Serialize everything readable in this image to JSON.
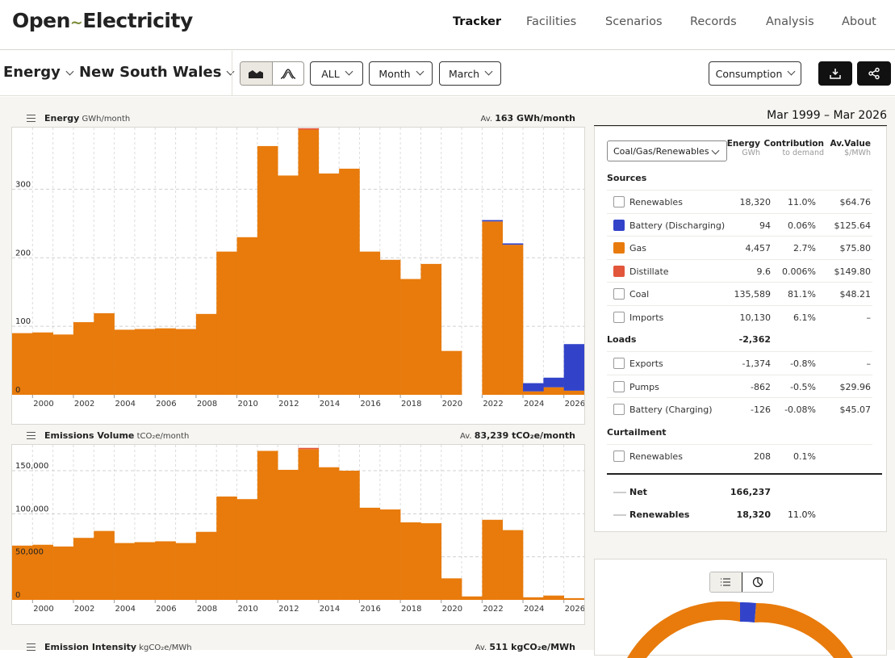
{
  "header": {
    "logo_left": "Open",
    "logo_mark": "~",
    "logo_right": "Electricity",
    "nav": [
      "Tracker",
      "Facilities",
      "Scenarios",
      "Records",
      "Analysis",
      "About"
    ],
    "active_nav": "Tracker"
  },
  "toolbar": {
    "metric": "Energy",
    "region": "New South Wales",
    "range_filter": "ALL",
    "interval": "Month",
    "month": "March",
    "view": "Consumption"
  },
  "charts": {
    "energy": {
      "title": "Energy",
      "unit": "GWh/month",
      "avg_prefix": "Av.",
      "avg": "163 GWh/month"
    },
    "emissions": {
      "title": "Emissions Volume",
      "unit": "tCO₂e/month",
      "avg_prefix": "Av.",
      "avg": "83,239 tCO₂e/month"
    },
    "intensity": {
      "title": "Emission Intensity",
      "unit": "kgCO₂e/MWh",
      "avg_prefix": "Av.",
      "avg": "511 kgCO₂e/MWh"
    }
  },
  "chart_data": [
    {
      "type": "bar",
      "title": "Energy",
      "ylabel": "GWh/month",
      "ylim": [
        0,
        390
      ],
      "yticks": [
        "0",
        "100",
        "200",
        "300"
      ],
      "xticks": [
        "2000",
        "2002",
        "2004",
        "2006",
        "2008",
        "2010",
        "2012",
        "2014",
        "2016",
        "2018",
        "2020",
        "2022",
        "2024",
        "2026"
      ],
      "categories": [
        "1999",
        "2000",
        "2001",
        "2002",
        "2003",
        "2004",
        "2005",
        "2006",
        "2007",
        "2008",
        "2009",
        "2010",
        "2011",
        "2012",
        "2013",
        "2014",
        "2015",
        "2016",
        "2017",
        "2018",
        "2019",
        "2020",
        "2021",
        "2022",
        "2023",
        "2024",
        "2025",
        "2026"
      ],
      "series": [
        {
          "name": "Gas",
          "color": "#e87b0c",
          "values": [
            90,
            91,
            88,
            106,
            119,
            95,
            96,
            97,
            96,
            118,
            209,
            230,
            363,
            320,
            387,
            323,
            330,
            209,
            197,
            169,
            191,
            64,
            0,
            253,
            219,
            5,
            11,
            6
          ]
        },
        {
          "name": "Battery (Discharging)",
          "color": "#3243c9",
          "values": [
            0,
            0,
            0,
            0,
            0,
            0,
            0,
            0,
            0,
            0,
            0,
            0,
            0,
            0,
            0,
            0,
            0,
            0,
            0,
            0,
            0,
            0,
            0,
            2,
            2,
            12,
            14,
            68
          ]
        },
        {
          "name": "Distillate",
          "color": "#e2563b",
          "values": [
            0,
            0,
            0,
            0,
            0,
            0,
            0,
            0,
            0,
            0,
            0,
            0,
            0,
            0,
            2,
            0,
            0,
            0,
            0,
            0,
            0,
            0,
            0,
            0,
            0,
            0,
            0,
            0
          ]
        }
      ]
    },
    {
      "type": "bar",
      "title": "Emissions Volume",
      "ylabel": "tCO₂e/month",
      "ylim": [
        0,
        180000
      ],
      "yticks": [
        "0",
        "50,000",
        "100,000",
        "150,000"
      ],
      "xticks": [
        "2000",
        "2002",
        "2004",
        "2006",
        "2008",
        "2010",
        "2012",
        "2014",
        "2016",
        "2018",
        "2020",
        "2022",
        "2024",
        "2026"
      ],
      "categories": [
        "1999",
        "2000",
        "2001",
        "2002",
        "2003",
        "2004",
        "2005",
        "2006",
        "2007",
        "2008",
        "2009",
        "2010",
        "2011",
        "2012",
        "2013",
        "2014",
        "2015",
        "2016",
        "2017",
        "2018",
        "2019",
        "2020",
        "2021",
        "2022",
        "2023",
        "2024",
        "2025",
        "2026"
      ],
      "series": [
        {
          "name": "Gas",
          "color": "#e87b0c",
          "values": [
            63000,
            64000,
            62000,
            72000,
            80000,
            66000,
            67000,
            68000,
            66000,
            79000,
            120000,
            117000,
            173000,
            151000,
            175000,
            154000,
            150000,
            107000,
            105000,
            90000,
            89000,
            25000,
            4000,
            93000,
            81000,
            3000,
            5000,
            2000
          ]
        },
        {
          "name": "Distillate",
          "color": "#e2563b",
          "values": [
            0,
            0,
            0,
            0,
            0,
            0,
            0,
            0,
            0,
            0,
            0,
            0,
            0,
            0,
            1500,
            0,
            0,
            0,
            0,
            0,
            0,
            0,
            0,
            0,
            0,
            0,
            0,
            0
          ]
        }
      ]
    }
  ],
  "summary": {
    "date_range": "Mar 1999 – Mar 2026",
    "grouping": "Coal/Gas/Renewables",
    "col_energy": "Energy",
    "col_energy_unit": "GWh",
    "col_contrib": "Contribution",
    "col_contrib_sub": "to demand",
    "col_value": "Av.Value",
    "col_value_unit": "$/MWh",
    "sources_label": "Sources",
    "sources": [
      {
        "name": "Renewables",
        "energy": "18,320",
        "contrib": "11.0%",
        "value": "$64.76",
        "color": "#ffffff"
      },
      {
        "name": "Battery (Discharging)",
        "energy": "94",
        "contrib": "0.06%",
        "value": "$125.64",
        "color": "#3243c9"
      },
      {
        "name": "Gas",
        "energy": "4,457",
        "contrib": "2.7%",
        "value": "$75.80",
        "color": "#e87b0c"
      },
      {
        "name": "Distillate",
        "energy": "9.6",
        "contrib": "0.006%",
        "value": "$149.80",
        "color": "#e2563b"
      },
      {
        "name": "Coal",
        "energy": "135,589",
        "contrib": "81.1%",
        "value": "$48.21",
        "color": "#ffffff"
      },
      {
        "name": "Imports",
        "energy": "10,130",
        "contrib": "6.1%",
        "value": "–",
        "color": "#ffffff"
      }
    ],
    "loads_label": "Loads",
    "loads_total": "-2,362",
    "loads": [
      {
        "name": "Exports",
        "energy": "-1,374",
        "contrib": "-0.8%",
        "value": "–",
        "color": "#ffffff"
      },
      {
        "name": "Pumps",
        "energy": "-862",
        "contrib": "-0.5%",
        "value": "$29.96",
        "color": "#ffffff"
      },
      {
        "name": "Battery (Charging)",
        "energy": "-126",
        "contrib": "-0.08%",
        "value": "$45.07",
        "color": "#ffffff"
      }
    ],
    "curtailment_label": "Curtailment",
    "curtailment": [
      {
        "name": "Renewables",
        "energy": "208",
        "contrib": "0.1%",
        "value": "",
        "color": "#ffffff"
      }
    ],
    "net_label": "Net",
    "net_value": "166,237",
    "renew_label": "Renewables",
    "renew_value": "18,320",
    "renew_pct": "11.0%"
  }
}
